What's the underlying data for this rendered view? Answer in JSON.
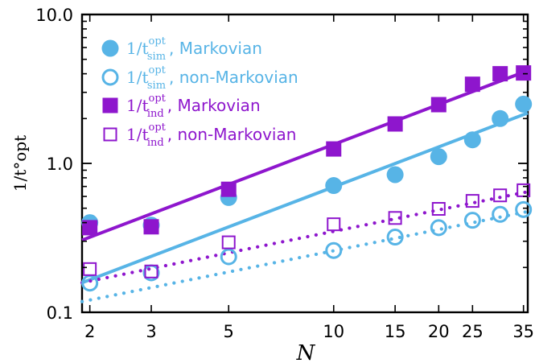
{
  "chart_data": {
    "type": "scatter",
    "xscale": "log",
    "yscale": "log",
    "xlim": [
      1.9,
      36
    ],
    "ylim": [
      0.1,
      10.0
    ],
    "xticks": [
      2,
      3,
      5,
      10,
      15,
      20,
      25,
      35
    ],
    "xtick_labels": [
      "2",
      "3",
      "5",
      "10",
      "15",
      "20",
      "25",
      "35"
    ],
    "yticks": [
      0.1,
      1.0,
      10.0
    ],
    "ytick_labels": [
      "0.1",
      "1.0",
      "10.0"
    ],
    "xlabel": "N",
    "ylabel": "1/t°opt",
    "legend_position": "top-left",
    "grid": false,
    "series": [
      {
        "name_math": "1/t",
        "name_sup": "opt",
        "name_sub": "sim",
        "name_text": ", Markovian",
        "marker": "filled-circle",
        "color": "#57b4e6",
        "x": [
          2,
          3,
          5,
          10,
          15,
          20,
          25,
          30,
          35
        ],
        "y": [
          0.4,
          0.385,
          0.59,
          0.71,
          0.84,
          1.11,
          1.44,
          2.0,
          2.5
        ],
        "fit": {
          "style": "solid",
          "x": [
            1.9,
            36
          ],
          "y": [
            0.158,
            2.18
          ]
        }
      },
      {
        "name_math": "1/t",
        "name_sup": "opt",
        "name_sub": "sim",
        "name_text": ", non-Markovian",
        "marker": "open-circle",
        "color": "#57b4e6",
        "x": [
          2,
          3,
          5,
          10,
          15,
          20,
          25,
          30,
          35
        ],
        "y": [
          0.157,
          0.184,
          0.236,
          0.26,
          0.32,
          0.37,
          0.415,
          0.455,
          0.49
        ],
        "fit": {
          "style": "dotted",
          "x": [
            1.9,
            36
          ],
          "y": [
            0.118,
            0.475
          ]
        }
      },
      {
        "name_math": "1/t",
        "name_sup": "opt",
        "name_sub": "ind",
        "name_text": ", Markovian",
        "marker": "filled-square",
        "color": "#8e16cd",
        "x": [
          2,
          3,
          5,
          10,
          15,
          20,
          25,
          30,
          35
        ],
        "y": [
          0.37,
          0.375,
          0.67,
          1.25,
          1.84,
          2.48,
          3.4,
          4.0,
          4.05
        ],
        "fit": {
          "style": "solid",
          "x": [
            1.9,
            36
          ],
          "y": [
            0.305,
            4.2
          ]
        }
      },
      {
        "name_math": "1/t",
        "name_sup": "opt",
        "name_sub": "ind",
        "name_text": ", non-Markovian",
        "marker": "open-square",
        "color": "#8e16cd",
        "x": [
          2,
          3,
          5,
          10,
          15,
          20,
          25,
          30,
          35
        ],
        "y": [
          0.195,
          0.188,
          0.295,
          0.39,
          0.43,
          0.495,
          0.56,
          0.61,
          0.66
        ],
        "fit": {
          "style": "dotted",
          "x": [
            1.9,
            36
          ],
          "y": [
            0.158,
            0.645
          ]
        }
      }
    ]
  }
}
